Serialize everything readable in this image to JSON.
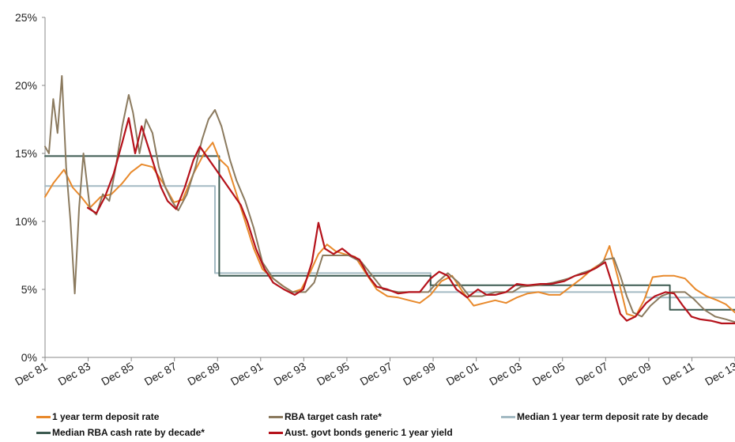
{
  "chart_data": {
    "type": "line",
    "title": "",
    "xlabel": "",
    "ylabel": "",
    "x_ticks": [
      "Dec 81",
      "Dec 83",
      "Dec 85",
      "Dec 87",
      "Dec 89",
      "Dec 91",
      "Dec 93",
      "Dec 95",
      "Dec 97",
      "Dec 99",
      "Dec 01",
      "Dec 03",
      "Dec 05",
      "Dec 07",
      "Dec 09",
      "Dec 11",
      "Dec 13"
    ],
    "y_ticks": [
      "0%",
      "5%",
      "10%",
      "15%",
      "20%",
      "25%"
    ],
    "xlim": [
      1981.92,
      2013.92
    ],
    "ylim": [
      0,
      25
    ],
    "legend_placement": "bottom",
    "series": [
      {
        "name": "1 year term deposit rate",
        "color": "#E8892B",
        "width": 2,
        "points": [
          [
            1981.92,
            11.8
          ],
          [
            1982.3,
            12.8
          ],
          [
            1982.8,
            13.8
          ],
          [
            1983.2,
            12.5
          ],
          [
            1983.6,
            11.8
          ],
          [
            1984.0,
            11.0
          ],
          [
            1984.5,
            11.8
          ],
          [
            1985.0,
            12.0
          ],
          [
            1985.5,
            12.8
          ],
          [
            1985.9,
            13.6
          ],
          [
            1986.4,
            14.2
          ],
          [
            1986.9,
            14.0
          ],
          [
            1987.4,
            12.8
          ],
          [
            1987.9,
            11.4
          ],
          [
            1988.3,
            11.6
          ],
          [
            1988.8,
            13.5
          ],
          [
            1989.3,
            15.0
          ],
          [
            1989.7,
            15.8
          ],
          [
            1990.0,
            14.6
          ],
          [
            1990.4,
            14.0
          ],
          [
            1990.8,
            12.0
          ],
          [
            1991.2,
            10.0
          ],
          [
            1991.6,
            8.0
          ],
          [
            1992.0,
            6.5
          ],
          [
            1992.5,
            5.8
          ],
          [
            1993.0,
            5.2
          ],
          [
            1993.4,
            4.8
          ],
          [
            1993.8,
            5.0
          ],
          [
            1994.2,
            6.2
          ],
          [
            1994.6,
            7.6
          ],
          [
            1995.0,
            8.3
          ],
          [
            1995.4,
            7.8
          ],
          [
            1995.8,
            7.6
          ],
          [
            1996.3,
            7.4
          ],
          [
            1996.8,
            6.2
          ],
          [
            1997.3,
            5.0
          ],
          [
            1997.8,
            4.5
          ],
          [
            1998.3,
            4.4
          ],
          [
            1998.8,
            4.2
          ],
          [
            1999.3,
            4.0
          ],
          [
            1999.8,
            4.6
          ],
          [
            2000.3,
            5.6
          ],
          [
            2000.8,
            6.0
          ],
          [
            2001.3,
            4.8
          ],
          [
            2001.8,
            3.8
          ],
          [
            2002.3,
            4.0
          ],
          [
            2002.8,
            4.2
          ],
          [
            2003.3,
            4.0
          ],
          [
            2003.8,
            4.4
          ],
          [
            2004.3,
            4.7
          ],
          [
            2004.8,
            4.8
          ],
          [
            2005.3,
            4.6
          ],
          [
            2005.8,
            4.6
          ],
          [
            2006.3,
            5.2
          ],
          [
            2006.8,
            5.8
          ],
          [
            2007.3,
            6.5
          ],
          [
            2007.8,
            7.0
          ],
          [
            2008.1,
            8.2
          ],
          [
            2008.5,
            5.8
          ],
          [
            2008.9,
            3.2
          ],
          [
            2009.3,
            3.0
          ],
          [
            2009.7,
            4.2
          ],
          [
            2010.1,
            5.9
          ],
          [
            2010.6,
            6.0
          ],
          [
            2011.1,
            6.0
          ],
          [
            2011.6,
            5.8
          ],
          [
            2012.1,
            5.0
          ],
          [
            2012.6,
            4.5
          ],
          [
            2013.1,
            4.2
          ],
          [
            2013.5,
            3.9
          ],
          [
            2013.92,
            3.3
          ]
        ]
      },
      {
        "name": "RBA target cash rate*",
        "color": "#8B7A5E",
        "width": 2,
        "points": [
          [
            1981.92,
            15.5
          ],
          [
            1982.1,
            15.0
          ],
          [
            1982.3,
            19.0
          ],
          [
            1982.5,
            16.5
          ],
          [
            1982.7,
            20.7
          ],
          [
            1982.9,
            14.0
          ],
          [
            1983.1,
            10.0
          ],
          [
            1983.3,
            4.7
          ],
          [
            1983.5,
            11.0
          ],
          [
            1983.7,
            15.0
          ],
          [
            1984.0,
            11.0
          ],
          [
            1984.3,
            10.5
          ],
          [
            1984.6,
            12.0
          ],
          [
            1984.9,
            11.5
          ],
          [
            1985.2,
            14.0
          ],
          [
            1985.5,
            17.0
          ],
          [
            1985.8,
            19.3
          ],
          [
            1986.0,
            18.0
          ],
          [
            1986.3,
            15.0
          ],
          [
            1986.6,
            17.5
          ],
          [
            1986.9,
            16.5
          ],
          [
            1987.2,
            14.0
          ],
          [
            1987.5,
            12.5
          ],
          [
            1987.8,
            11.5
          ],
          [
            1988.1,
            10.8
          ],
          [
            1988.5,
            12.0
          ],
          [
            1988.9,
            14.0
          ],
          [
            1989.2,
            16.0
          ],
          [
            1989.5,
            17.5
          ],
          [
            1989.8,
            18.2
          ],
          [
            1990.1,
            17.0
          ],
          [
            1990.5,
            14.5
          ],
          [
            1990.8,
            13.0
          ],
          [
            1991.2,
            11.5
          ],
          [
            1991.6,
            9.5
          ],
          [
            1992.0,
            7.0
          ],
          [
            1992.5,
            5.8
          ],
          [
            1992.9,
            5.3
          ],
          [
            1993.4,
            4.8
          ],
          [
            1994.0,
            4.8
          ],
          [
            1994.4,
            5.5
          ],
          [
            1994.8,
            7.5
          ],
          [
            1995.3,
            7.5
          ],
          [
            1996.0,
            7.5
          ],
          [
            1996.6,
            7.0
          ],
          [
            1997.1,
            6.0
          ],
          [
            1997.6,
            5.0
          ],
          [
            1998.3,
            4.8
          ],
          [
            1999.0,
            4.8
          ],
          [
            1999.7,
            4.8
          ],
          [
            2000.1,
            5.5
          ],
          [
            2000.6,
            6.2
          ],
          [
            2001.1,
            5.5
          ],
          [
            2001.6,
            4.5
          ],
          [
            2002.2,
            4.5
          ],
          [
            2002.8,
            4.8
          ],
          [
            2003.6,
            4.8
          ],
          [
            2004.0,
            5.2
          ],
          [
            2004.8,
            5.3
          ],
          [
            2005.5,
            5.5
          ],
          [
            2006.2,
            5.8
          ],
          [
            2006.8,
            6.2
          ],
          [
            2007.4,
            6.5
          ],
          [
            2007.9,
            7.2
          ],
          [
            2008.3,
            7.3
          ],
          [
            2008.6,
            6.0
          ],
          [
            2008.9,
            4.5
          ],
          [
            2009.2,
            3.3
          ],
          [
            2009.6,
            3.0
          ],
          [
            2010.0,
            3.8
          ],
          [
            2010.5,
            4.5
          ],
          [
            2011.0,
            4.8
          ],
          [
            2011.6,
            4.8
          ],
          [
            2012.0,
            4.3
          ],
          [
            2012.5,
            3.5
          ],
          [
            2013.0,
            3.0
          ],
          [
            2013.5,
            2.8
          ],
          [
            2013.92,
            2.6
          ]
        ]
      },
      {
        "name": "Median 1 year term deposit rate by decade",
        "color": "#A3BAC3",
        "width": 2,
        "points": [
          [
            1981.92,
            12.6
          ],
          [
            1989.8,
            12.6
          ],
          [
            1989.8,
            6.2
          ],
          [
            1999.8,
            6.2
          ],
          [
            1999.8,
            4.8
          ],
          [
            2009.8,
            4.8
          ],
          [
            2009.8,
            4.4
          ],
          [
            2013.92,
            4.4
          ]
        ]
      },
      {
        "name": "Median RBA cash rate by decade*",
        "color": "#3C5A50",
        "width": 2,
        "points": [
          [
            1981.92,
            14.8
          ],
          [
            1990.0,
            14.8
          ],
          [
            1990.0,
            6.0
          ],
          [
            1999.8,
            6.0
          ],
          [
            1999.8,
            5.3
          ],
          [
            2010.9,
            5.3
          ],
          [
            2010.9,
            3.5
          ],
          [
            2013.92,
            3.5
          ]
        ]
      },
      {
        "name": "Aust. govt bonds generic 1 year yield",
        "color": "#B5121B",
        "width": 2.2,
        "points": [
          [
            1983.9,
            11.0
          ],
          [
            1984.3,
            10.6
          ],
          [
            1984.7,
            11.8
          ],
          [
            1985.1,
            13.5
          ],
          [
            1985.5,
            15.8
          ],
          [
            1985.8,
            17.6
          ],
          [
            1986.1,
            15.0
          ],
          [
            1986.4,
            17.0
          ],
          [
            1986.7,
            15.5
          ],
          [
            1987.0,
            14.0
          ],
          [
            1987.3,
            12.5
          ],
          [
            1987.6,
            11.5
          ],
          [
            1988.0,
            10.9
          ],
          [
            1988.4,
            12.5
          ],
          [
            1988.8,
            14.5
          ],
          [
            1989.1,
            15.5
          ],
          [
            1991.0,
            11.2
          ],
          [
            1991.3,
            10.0
          ],
          [
            1991.7,
            8.0
          ],
          [
            1992.1,
            6.5
          ],
          [
            1992.5,
            5.5
          ],
          [
            1993.0,
            5.0
          ],
          [
            1993.5,
            4.6
          ],
          [
            1993.9,
            5.0
          ],
          [
            1994.3,
            7.0
          ],
          [
            1994.6,
            9.9
          ],
          [
            1994.9,
            8.0
          ],
          [
            1995.3,
            7.6
          ],
          [
            1995.7,
            8.0
          ],
          [
            1996.1,
            7.5
          ],
          [
            1996.5,
            7.2
          ],
          [
            1996.9,
            6.0
          ],
          [
            1997.3,
            5.2
          ],
          [
            1997.8,
            5.0
          ],
          [
            1998.3,
            4.7
          ],
          [
            1998.8,
            4.8
          ],
          [
            1999.3,
            4.8
          ],
          [
            1999.8,
            5.8
          ],
          [
            2000.2,
            6.3
          ],
          [
            2000.6,
            6.0
          ],
          [
            2001.0,
            5.0
          ],
          [
            2001.5,
            4.4
          ],
          [
            2002.0,
            5.0
          ],
          [
            2002.4,
            4.6
          ],
          [
            2002.8,
            4.6
          ],
          [
            2003.3,
            4.8
          ],
          [
            2003.8,
            5.4
          ],
          [
            2004.3,
            5.3
          ],
          [
            2004.9,
            5.4
          ],
          [
            2005.4,
            5.4
          ],
          [
            2006.0,
            5.6
          ],
          [
            2006.5,
            6.0
          ],
          [
            2007.0,
            6.2
          ],
          [
            2007.5,
            6.6
          ],
          [
            2007.9,
            7.0
          ],
          [
            2008.2,
            5.5
          ],
          [
            2008.6,
            3.2
          ],
          [
            2008.9,
            2.7
          ],
          [
            2009.3,
            3.0
          ],
          [
            2009.8,
            4.0
          ],
          [
            2010.2,
            4.5
          ],
          [
            2010.7,
            4.8
          ],
          [
            2011.1,
            4.7
          ],
          [
            2011.5,
            3.8
          ],
          [
            2011.9,
            3.0
          ],
          [
            2012.3,
            2.8
          ],
          [
            2012.8,
            2.7
          ],
          [
            2013.3,
            2.5
          ],
          [
            2013.92,
            2.5
          ]
        ]
      }
    ]
  }
}
